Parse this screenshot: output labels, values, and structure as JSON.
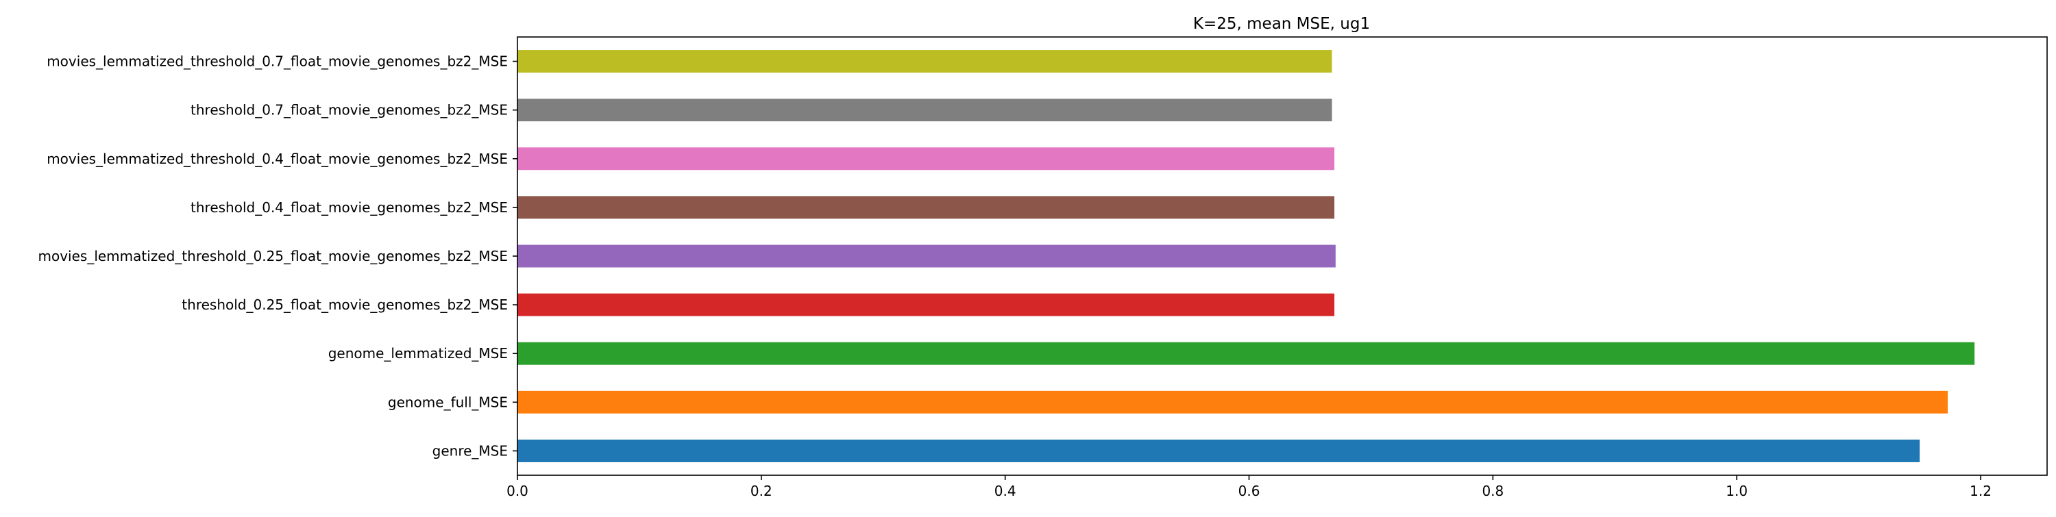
{
  "chart_data": {
    "type": "bar",
    "orientation": "horizontal",
    "title": "K=25, mean MSE, ug1",
    "xlabel": "",
    "ylabel": "",
    "xlim": [
      0,
      1.2545
    ],
    "xticks": [
      0.0,
      0.2,
      0.4,
      0.6,
      0.8,
      1.0,
      1.2
    ],
    "xtick_labels": [
      "0.0",
      "0.2",
      "0.4",
      "0.6",
      "0.8",
      "1.0",
      "1.2"
    ],
    "grid": false,
    "legend": "none",
    "categories": [
      "genre_MSE",
      "genome_full_MSE",
      "genome_lemmatized_MSE",
      "threshold_0.25_float_movie_genomes_bz2_MSE",
      "movies_lemmatized_threshold_0.25_float_movie_genomes_bz2_MSE",
      "threshold_0.4_float_movie_genomes_bz2_MSE",
      "movies_lemmatized_threshold_0.4_float_movie_genomes_bz2_MSE",
      "threshold_0.7_float_movie_genomes_bz2_MSE",
      "movies_lemmatized_threshold_0.7_float_movie_genomes_bz2_MSE"
    ],
    "values": [
      1.15,
      1.173,
      1.195,
      0.67,
      0.671,
      0.67,
      0.67,
      0.668,
      0.668
    ],
    "colors": [
      "#1f77b4",
      "#ff7f0e",
      "#2ca02c",
      "#d62728",
      "#9467bd",
      "#8c564b",
      "#e377c2",
      "#7f7f7f",
      "#bcbd22"
    ]
  }
}
